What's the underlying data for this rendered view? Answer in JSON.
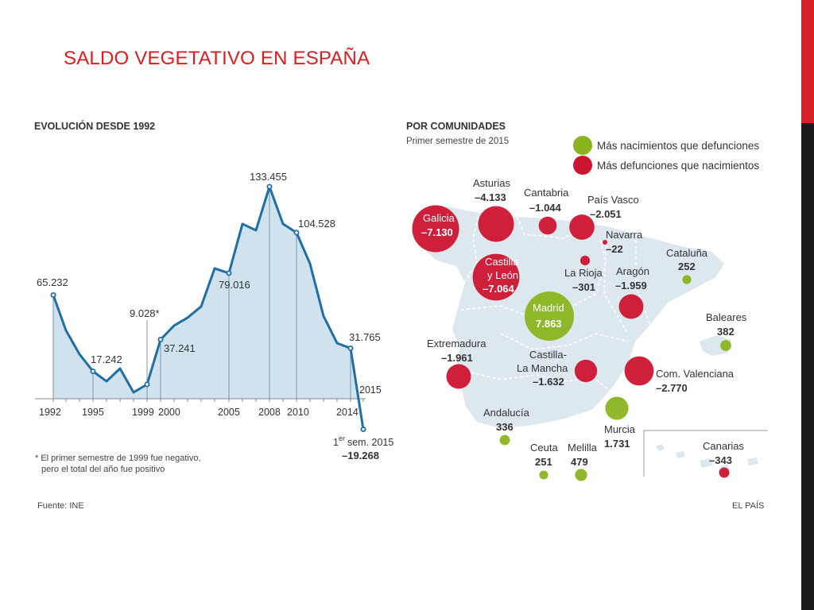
{
  "slide": {
    "title": "SALDO VEGETATIVO EN ESPAÑA"
  },
  "left_panel": {
    "title": "EVOLUCIÓN DESDE 1992",
    "note_line1": "* El primer semestre de 1999 fue negativo,",
    "note_line2": "pero el total del año fue positivo",
    "source": "Fuente: INE"
  },
  "right_panel": {
    "title": "POR COMUNIDADES",
    "subtitle": "Primer semestre de 2015",
    "legend_positive": "Más nacimientos que defunciones",
    "legend_negative": "Más defunciones que nacimientos",
    "credit": "EL PAÍS"
  },
  "colors": {
    "positive": "#8ab41f",
    "negative": "#cc1530",
    "line": "#1f6fa6",
    "area": "#cfe2ee",
    "title": "#e01b1b"
  },
  "chart_data": [
    {
      "type": "area",
      "title": "EVOLUCIÓN DESDE 1992",
      "x": [
        1992,
        1993,
        1994,
        1995,
        1996,
        1997,
        1998,
        1999,
        2000,
        2001,
        2002,
        2003,
        2004,
        2005,
        2006,
        2007,
        2008,
        2009,
        2010,
        2011,
        2012,
        2013,
        2014,
        "2015 (1er sem.)"
      ],
      "values": [
        65232,
        43000,
        28000,
        17242,
        11000,
        19000,
        4000,
        9028,
        37241,
        46000,
        51000,
        58000,
        82000,
        79016,
        110000,
        106000,
        133455,
        110000,
        104528,
        85000,
        52000,
        35000,
        31765,
        -19268
      ],
      "value_labels": [
        {
          "x": 1992,
          "text": "65.232"
        },
        {
          "x": 1995,
          "text": "17.242"
        },
        {
          "x": 1999,
          "text": "9.028*"
        },
        {
          "x": 2000,
          "text": "37.241"
        },
        {
          "x": 2005,
          "text": "79.016"
        },
        {
          "x": 2008,
          "text": "133.455"
        },
        {
          "x": 2010,
          "text": "104.528"
        },
        {
          "x": 2014,
          "text": "31.765"
        },
        {
          "x": "2015 (1er sem.)",
          "text": "–19.268"
        }
      ],
      "x_tick_labels": [
        "1992",
        "1995",
        "1999",
        "2000",
        "2005",
        "2008",
        "2010",
        "2014"
      ],
      "end_label_year": "2015",
      "end_label_sem_prefix": "1",
      "end_label_sem_sup": "er",
      "end_label_sem_suffix": "sem. 2015",
      "ylim": [
        -22000,
        140000
      ],
      "grid": false
    },
    {
      "type": "bubble-map",
      "title": "POR COMUNIDADES",
      "subtitle": "Primer semestre de 2015",
      "series": [
        {
          "name": "Galicia",
          "value": -7130,
          "value_text": "–7.130"
        },
        {
          "name": "Asturias",
          "value": -4133,
          "value_text": "–4.133"
        },
        {
          "name": "Cantabria",
          "value": -1044,
          "value_text": "–1.044"
        },
        {
          "name": "País Vasco",
          "value": -2051,
          "value_text": "–2.051"
        },
        {
          "name": "Navarra",
          "value": -22,
          "value_text": "–22"
        },
        {
          "name": "La Rioja",
          "value": -301,
          "value_text": "–301"
        },
        {
          "name": "Aragón",
          "value": -1959,
          "value_text": "–1.959"
        },
        {
          "name": "Cataluña",
          "value": 252,
          "value_text": "252"
        },
        {
          "name": "Castilla y León",
          "name_line1": "Castilla",
          "name_line2": "y León",
          "value": -7064,
          "value_text": "–7.064"
        },
        {
          "name": "Madrid",
          "value": 7863,
          "value_text": "7.863"
        },
        {
          "name": "Baleares",
          "value": 382,
          "value_text": "382"
        },
        {
          "name": "Extremadura",
          "value": -1961,
          "value_text": "–1.961"
        },
        {
          "name": "Castilla-La Mancha",
          "name_line1": "Castilla-",
          "name_line2": "La Mancha",
          "value": -1632,
          "value_text": "–1.632"
        },
        {
          "name": "Com. Valenciana",
          "value": -2770,
          "value_text": "–2.770"
        },
        {
          "name": "Andalucía",
          "value": 336,
          "value_text": "336"
        },
        {
          "name": "Murcia",
          "value": 1731,
          "value_text": "1.731"
        },
        {
          "name": "Ceuta",
          "value": 251,
          "value_text": "251"
        },
        {
          "name": "Melilla",
          "value": 479,
          "value_text": "479"
        },
        {
          "name": "Canarias",
          "value": -343,
          "value_text": "–343"
        }
      ]
    }
  ]
}
